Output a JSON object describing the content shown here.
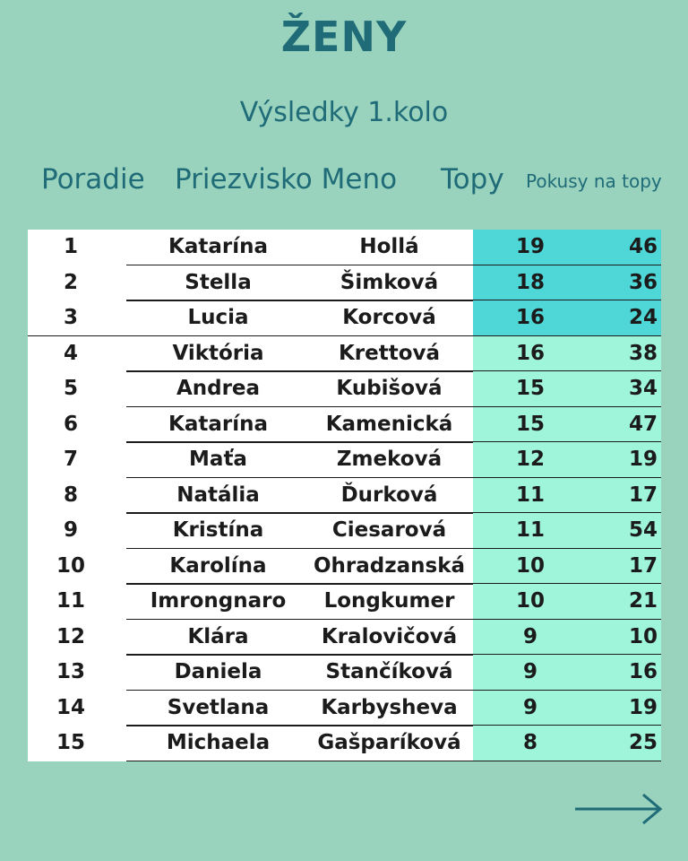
{
  "header": {
    "title": "ŽENY",
    "subtitle": "Výsledky 1.kolo"
  },
  "columns": {
    "rank": "Poradie",
    "name": "Priezvisko Meno",
    "tops": "Topy",
    "attempts": "Pokusy na topy"
  },
  "colors": {
    "background": "#99d2bd",
    "accent_text": "#1f6c78",
    "podium_highlight": "#4fd6d6",
    "score_highlight": "#9ef5d9"
  },
  "rows": [
    {
      "rank": "1",
      "first": "Katarína",
      "last": "Hollá",
      "tops": "19",
      "attempts": "46",
      "podium": true
    },
    {
      "rank": "2",
      "first": "Stella",
      "last": "Šimková",
      "tops": "18",
      "attempts": "36",
      "podium": true
    },
    {
      "rank": "3",
      "first": "Lucia",
      "last": "Korcová",
      "tops": "16",
      "attempts": "24",
      "podium": true
    },
    {
      "rank": "4",
      "first": "Viktória",
      "last": "Krettová",
      "tops": "16",
      "attempts": "38",
      "podium": false
    },
    {
      "rank": "5",
      "first": "Andrea",
      "last": "Kubišová",
      "tops": "15",
      "attempts": "34",
      "podium": false
    },
    {
      "rank": "6",
      "first": "Katarína",
      "last": "Kamenická",
      "tops": "15",
      "attempts": "47",
      "podium": false
    },
    {
      "rank": "7",
      "first": "Maťa",
      "last": "Zmeková",
      "tops": "12",
      "attempts": "19",
      "podium": false
    },
    {
      "rank": "8",
      "first": "Natália",
      "last": "Ďurková",
      "tops": "11",
      "attempts": "17",
      "podium": false
    },
    {
      "rank": "9",
      "first": "Kristína",
      "last": "Ciesarová",
      "tops": "11",
      "attempts": "54",
      "podium": false
    },
    {
      "rank": "10",
      "first": "Karolína",
      "last": "Ohradzanská",
      "tops": "10",
      "attempts": "17",
      "podium": false
    },
    {
      "rank": "11",
      "first": "Imrongnaro",
      "last": "Longkumer",
      "tops": "10",
      "attempts": "21",
      "podium": false
    },
    {
      "rank": "12",
      "first": "Klára",
      "last": "Kralovičová",
      "tops": "9",
      "attempts": "10",
      "podium": false
    },
    {
      "rank": "13",
      "first": "Daniela",
      "last": "Stančíková",
      "tops": "9",
      "attempts": "16",
      "podium": false
    },
    {
      "rank": "14",
      "first": "Svetlana",
      "last": "Karbysheva",
      "tops": "9",
      "attempts": "19",
      "podium": false
    },
    {
      "rank": "15",
      "first": "Michaela",
      "last": "Gašparíková",
      "tops": "8",
      "attempts": "25",
      "podium": false
    }
  ],
  "navigation": {
    "next_icon": "arrow-right-icon"
  }
}
